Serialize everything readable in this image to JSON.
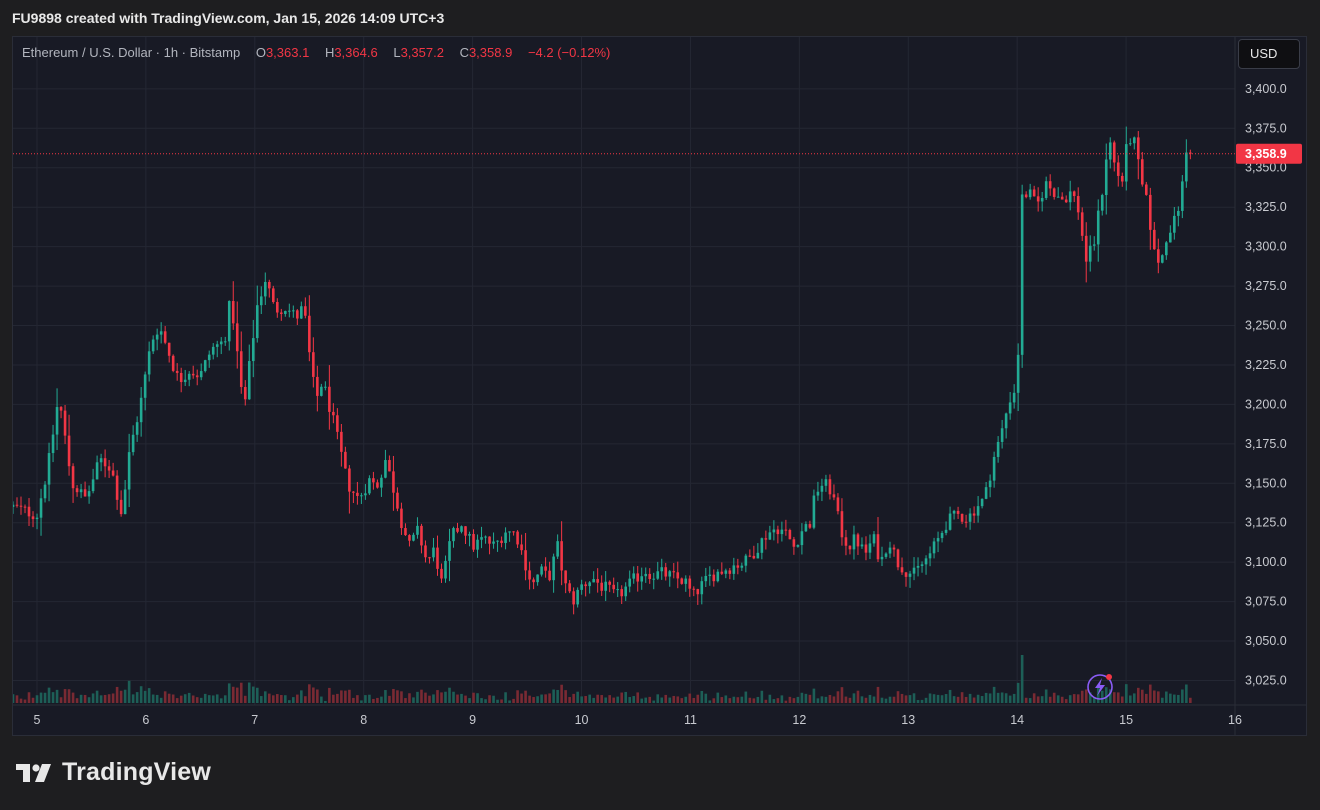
{
  "header": {
    "caption": "FU9898 created with TradingView.com, Jan 15, 2026 14:09 UTC+3"
  },
  "legend": {
    "symbol": "Ethereum / U.S. Dollar · 1h · Bitstamp",
    "o_label": "O",
    "o_value": "3,363.1",
    "h_label": "H",
    "h_value": "3,364.6",
    "l_label": "L",
    "l_value": "3,357.2",
    "c_label": "C",
    "c_value": "3,358.9",
    "change": "−4.2 (−0.12%)"
  },
  "currency_button": {
    "label": "USD"
  },
  "brand": {
    "name": "TradingView",
    "icon": "tradingview-logo-icon"
  },
  "colors": {
    "up": "#22ab94",
    "down": "#f23645",
    "background": "#181a25",
    "grid": "#242733",
    "price_label_bg": "#f23645"
  },
  "chart_data": {
    "type": "candlestick",
    "title": "Ethereum / U.S. Dollar · 1h · Bitstamp",
    "currency": "USD",
    "y_ticks": [
      "3,400.0",
      "3,375.0",
      "3,350.0",
      "3,325.0",
      "3,300.0",
      "3,275.0",
      "3,250.0",
      "3,225.0",
      "3,200.0",
      "3,175.0",
      "3,150.0",
      "3,125.0",
      "3,100.0",
      "3,075.0",
      "3,050.0",
      "3,025.0"
    ],
    "y_tick_values": [
      3400,
      3375,
      3350,
      3325,
      3300,
      3275,
      3250,
      3225,
      3200,
      3175,
      3150,
      3125,
      3100,
      3075,
      3050,
      3025
    ],
    "x_ticks": [
      "5",
      "6",
      "7",
      "8",
      "9",
      "10",
      "11",
      "12",
      "13",
      "14",
      "15",
      "16"
    ],
    "x_tick_values": [
      5,
      6,
      7,
      8,
      9,
      10,
      11,
      12,
      13,
      14,
      15,
      16
    ],
    "x_range": [
      4.78,
      16.0
    ],
    "y_range": [
      3012,
      3424
    ],
    "last_price": 3358.9,
    "last_price_label": "3,358.9",
    "close_path": [
      [
        4.78,
        3135
      ],
      [
        5.0,
        3130
      ],
      [
        5.1,
        3160
      ],
      [
        5.2,
        3205
      ],
      [
        5.32,
        3150
      ],
      [
        5.45,
        3140
      ],
      [
        5.58,
        3165
      ],
      [
        5.68,
        3160
      ],
      [
        5.78,
        3130
      ],
      [
        5.85,
        3170
      ],
      [
        5.95,
        3200
      ],
      [
        6.05,
        3240
      ],
      [
        6.12,
        3250
      ],
      [
        6.2,
        3235
      ],
      [
        6.3,
        3215
      ],
      [
        6.4,
        3222
      ],
      [
        6.5,
        3218
      ],
      [
        6.6,
        3235
      ],
      [
        6.72,
        3240
      ],
      [
        6.78,
        3268
      ],
      [
        6.85,
        3225
      ],
      [
        6.9,
        3195
      ],
      [
        6.96,
        3230
      ],
      [
        7.02,
        3262
      ],
      [
        7.1,
        3280
      ],
      [
        7.18,
        3260
      ],
      [
        7.28,
        3262
      ],
      [
        7.38,
        3255
      ],
      [
        7.45,
        3262
      ],
      [
        7.5,
        3232
      ],
      [
        7.56,
        3202
      ],
      [
        7.62,
        3215
      ],
      [
        7.7,
        3195
      ],
      [
        7.78,
        3172
      ],
      [
        7.85,
        3150
      ],
      [
        7.95,
        3140
      ],
      [
        8.05,
        3152
      ],
      [
        8.12,
        3148
      ],
      [
        8.2,
        3165
      ],
      [
        8.28,
        3145
      ],
      [
        8.35,
        3125
      ],
      [
        8.42,
        3110
      ],
      [
        8.5,
        3120
      ],
      [
        8.58,
        3100
      ],
      [
        8.65,
        3108
      ],
      [
        8.72,
        3085
      ],
      [
        8.8,
        3115
      ],
      [
        8.9,
        3125
      ],
      [
        9.0,
        3110
      ],
      [
        9.1,
        3115
      ],
      [
        9.2,
        3110
      ],
      [
        9.3,
        3120
      ],
      [
        9.4,
        3118
      ],
      [
        9.48,
        3100
      ],
      [
        9.55,
        3085
      ],
      [
        9.62,
        3095
      ],
      [
        9.7,
        3090
      ],
      [
        9.78,
        3110
      ],
      [
        9.85,
        3085
      ],
      [
        9.92,
        3075
      ],
      [
        10.0,
        3085
      ],
      [
        10.1,
        3090
      ],
      [
        10.18,
        3085
      ],
      [
        10.25,
        3082
      ],
      [
        10.32,
        3078
      ],
      [
        10.4,
        3083
      ],
      [
        10.5,
        3090
      ],
      [
        10.58,
        3095
      ],
      [
        10.65,
        3092
      ],
      [
        10.75,
        3093
      ],
      [
        10.85,
        3090
      ],
      [
        10.95,
        3088
      ],
      [
        11.02,
        3078
      ],
      [
        11.1,
        3085
      ],
      [
        11.2,
        3092
      ],
      [
        11.3,
        3095
      ],
      [
        11.4,
        3098
      ],
      [
        11.5,
        3100
      ],
      [
        11.6,
        3108
      ],
      [
        11.7,
        3118
      ],
      [
        11.8,
        3122
      ],
      [
        11.88,
        3118
      ],
      [
        11.95,
        3110
      ],
      [
        12.02,
        3120
      ],
      [
        12.1,
        3125
      ],
      [
        12.15,
        3145
      ],
      [
        12.22,
        3150
      ],
      [
        12.3,
        3145
      ],
      [
        12.38,
        3120
      ],
      [
        12.45,
        3110
      ],
      [
        12.52,
        3115
      ],
      [
        12.6,
        3105
      ],
      [
        12.68,
        3115
      ],
      [
        12.75,
        3100
      ],
      [
        12.82,
        3115
      ],
      [
        12.9,
        3100
      ],
      [
        12.98,
        3095
      ],
      [
        13.05,
        3092
      ],
      [
        13.12,
        3098
      ],
      [
        13.2,
        3105
      ],
      [
        13.28,
        3115
      ],
      [
        13.35,
        3125
      ],
      [
        13.45,
        3130
      ],
      [
        13.55,
        3128
      ],
      [
        13.62,
        3135
      ],
      [
        13.7,
        3140
      ],
      [
        13.78,
        3165
      ],
      [
        13.85,
        3180
      ],
      [
        13.9,
        3195
      ],
      [
        13.96,
        3210
      ],
      [
        14.0,
        3205
      ],
      [
        14.04,
        3330
      ],
      [
        14.1,
        3335
      ],
      [
        14.18,
        3325
      ],
      [
        14.26,
        3340
      ],
      [
        14.34,
        3335
      ],
      [
        14.42,
        3330
      ],
      [
        14.5,
        3335
      ],
      [
        14.58,
        3320
      ],
      [
        14.62,
        3290
      ],
      [
        14.7,
        3300
      ],
      [
        14.78,
        3335
      ],
      [
        14.84,
        3370
      ],
      [
        14.9,
        3350
      ],
      [
        14.96,
        3340
      ],
      [
        15.02,
        3370
      ],
      [
        15.08,
        3365
      ],
      [
        15.14,
        3340
      ],
      [
        15.2,
        3325
      ],
      [
        15.26,
        3295
      ],
      [
        15.32,
        3290
      ],
      [
        15.38,
        3310
      ],
      [
        15.44,
        3315
      ],
      [
        15.5,
        3330
      ],
      [
        15.56,
        3363
      ],
      [
        15.59,
        3358.9
      ]
    ]
  }
}
